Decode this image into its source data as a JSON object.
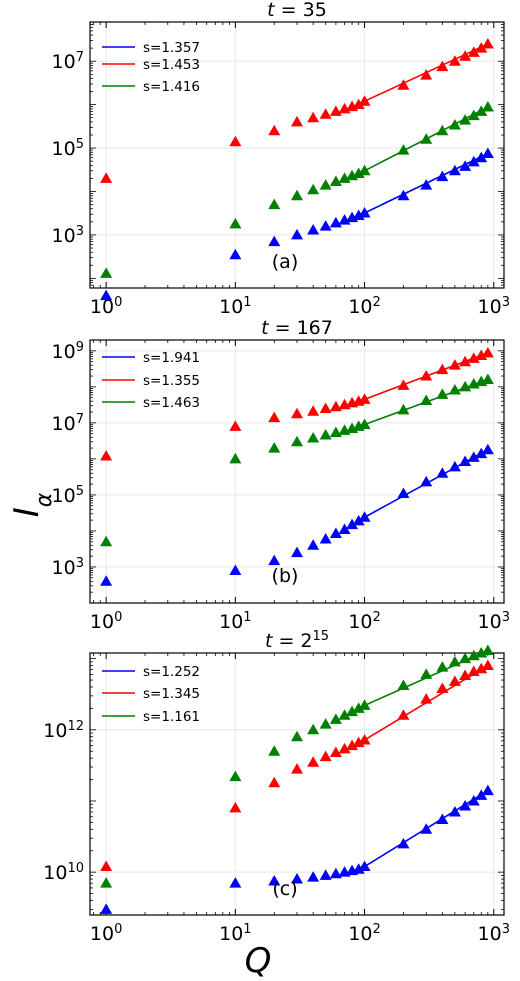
{
  "figure": {
    "ylabel_main": "I",
    "ylabel_sub": "α",
    "xlabel": "Q"
  },
  "colors": {
    "blue": "#0000ff",
    "red": "#ff0000",
    "green": "#008000",
    "grid": "#e8e8e8"
  },
  "chart_data": [
    {
      "type": "scatter",
      "title_prefix": "t = ",
      "title_value": "35",
      "title_exp": "",
      "panel_label": "(a)",
      "xscale": "log",
      "yscale": "log",
      "xlim": [
        0.75,
        1200
      ],
      "ylim": [
        60,
        80000000
      ],
      "xticks": [
        1,
        10,
        100,
        1000
      ],
      "xtick_labels": [
        {
          "base": "10",
          "exp": "0"
        },
        {
          "base": "10",
          "exp": "1"
        },
        {
          "base": "10",
          "exp": "2"
        },
        {
          "base": "10",
          "exp": "3"
        }
      ],
      "yticks": [
        1000,
        100000,
        10000000
      ],
      "ytick_labels": [
        {
          "base": "10",
          "exp": "3"
        },
        {
          "base": "10",
          "exp": "5"
        },
        {
          "base": "10",
          "exp": "7"
        }
      ],
      "grid": true,
      "legend_position": "top-left",
      "legend": [
        {
          "label": "s=1.357",
          "color": "#0000ff"
        },
        {
          "label": "s=1.453",
          "color": "#ff0000"
        },
        {
          "label": "s=1.416",
          "color": "#008000"
        }
      ],
      "series": [
        {
          "color": "#0000ff",
          "marker": "triangle",
          "x": [
            1,
            10,
            20,
            30,
            40,
            50,
            60,
            70,
            80,
            90,
            100,
            200,
            300,
            400,
            500,
            600,
            700,
            800,
            900
          ],
          "y": [
            40,
            350,
            700,
            1000,
            1300,
            1600,
            1900,
            2200,
            2500,
            2800,
            3200,
            8000,
            14000,
            22000,
            30000,
            38000,
            48000,
            60000,
            75000
          ],
          "fit": {
            "x": [
              100,
              900
            ],
            "y": [
              3200,
              75000
            ]
          }
        },
        {
          "color": "#ff0000",
          "marker": "triangle",
          "x": [
            1,
            10,
            20,
            30,
            40,
            50,
            60,
            70,
            80,
            90,
            100,
            200,
            300,
            400,
            500,
            600,
            700,
            800,
            900
          ],
          "y": [
            20000,
            140000,
            250000,
            400000,
            500000,
            600000,
            700000,
            800000,
            900000,
            1000000,
            1200000,
            2800000,
            4800000,
            7500000,
            10000000,
            13000000,
            16000000,
            20000000,
            25000000
          ],
          "fit": {
            "x": [
              100,
              900
            ],
            "y": [
              1200000,
              25000000
            ]
          }
        },
        {
          "color": "#008000",
          "marker": "triangle",
          "x": [
            1,
            10,
            20,
            30,
            40,
            50,
            60,
            70,
            80,
            90,
            100,
            200,
            300,
            400,
            500,
            600,
            700,
            800,
            900
          ],
          "y": [
            130,
            1800,
            5000,
            8000,
            11000,
            14000,
            17000,
            20000,
            23000,
            26000,
            30000,
            90000,
            160000,
            250000,
            340000,
            440000,
            560000,
            700000,
            880000
          ],
          "fit": {
            "x": [
              100,
              900
            ],
            "y": [
              30000,
              880000
            ]
          }
        }
      ]
    },
    {
      "type": "scatter",
      "title_prefix": "t = ",
      "title_value": "167",
      "title_exp": "",
      "panel_label": "(b)",
      "xscale": "log",
      "yscale": "log",
      "xlim": [
        0.75,
        1200
      ],
      "ylim": [
        100,
        2000000000
      ],
      "xticks": [
        1,
        10,
        100,
        1000
      ],
      "xtick_labels": [
        {
          "base": "10",
          "exp": "0"
        },
        {
          "base": "10",
          "exp": "1"
        },
        {
          "base": "10",
          "exp": "2"
        },
        {
          "base": "10",
          "exp": "3"
        }
      ],
      "yticks": [
        1000,
        100000,
        10000000,
        1000000000
      ],
      "ytick_labels": [
        {
          "base": "10",
          "exp": "3"
        },
        {
          "base": "10",
          "exp": "5"
        },
        {
          "base": "10",
          "exp": "7"
        },
        {
          "base": "10",
          "exp": "9"
        }
      ],
      "grid": true,
      "legend_position": "top-left",
      "legend": [
        {
          "label": "s=1.941",
          "color": "#0000ff"
        },
        {
          "label": "s=1.355",
          "color": "#ff0000"
        },
        {
          "label": "s=1.463",
          "color": "#008000"
        }
      ],
      "series": [
        {
          "color": "#0000ff",
          "marker": "triangle",
          "x": [
            1,
            10,
            20,
            30,
            40,
            50,
            60,
            70,
            80,
            90,
            100,
            200,
            300,
            400,
            500,
            600,
            700,
            800,
            900
          ],
          "y": [
            400,
            800,
            1500,
            2500,
            4000,
            6000,
            8500,
            11000,
            15000,
            19000,
            24000,
            110000,
            230000,
            400000,
            600000,
            850000,
            1100000,
            1400000,
            1800000
          ],
          "fit": {
            "x": [
              100,
              900
            ],
            "y": [
              24000,
              1800000
            ]
          }
        },
        {
          "color": "#ff0000",
          "marker": "triangle",
          "x": [
            1,
            10,
            20,
            30,
            40,
            50,
            60,
            70,
            80,
            90,
            100,
            200,
            300,
            400,
            500,
            600,
            700,
            800,
            900
          ],
          "y": [
            1200000,
            8000000,
            14000000,
            18000000,
            21000000,
            25000000,
            28000000,
            32000000,
            36000000,
            40000000,
            45000000,
            110000000,
            200000000,
            300000000,
            400000000,
            500000000,
            620000000,
            740000000,
            880000000
          ],
          "fit": {
            "x": [
              100,
              900
            ],
            "y": [
              45000000,
              880000000
            ]
          }
        },
        {
          "color": "#008000",
          "marker": "triangle",
          "x": [
            1,
            10,
            20,
            30,
            40,
            50,
            60,
            70,
            80,
            90,
            100,
            200,
            300,
            400,
            500,
            600,
            700,
            800,
            900
          ],
          "y": [
            5000,
            1000000,
            2000000,
            3000000,
            3800000,
            4600000,
            5400000,
            6200000,
            7000000,
            8000000,
            9000000,
            23000000,
            42000000,
            62000000,
            82000000,
            100000000,
            120000000,
            140000000,
            160000000
          ],
          "fit": {
            "x": [
              100,
              900
            ],
            "y": [
              9000000,
              160000000
            ]
          }
        }
      ]
    },
    {
      "type": "scatter",
      "title_prefix": "t = ",
      "title_value": "2",
      "title_exp": "15",
      "panel_label": "(c)",
      "xscale": "log",
      "yscale": "log",
      "xlim": [
        0.75,
        1200
      ],
      "ylim": 2500000000,
      "ylim_range": [
        2500000000,
        12000000000000
      ],
      "xticks": [
        1,
        10,
        100,
        1000
      ],
      "xtick_labels": [
        {
          "base": "10",
          "exp": "0"
        },
        {
          "base": "10",
          "exp": "1"
        },
        {
          "base": "10",
          "exp": "2"
        },
        {
          "base": "10",
          "exp": "3"
        }
      ],
      "yticks": [
        10000000000,
        1000000000000
      ],
      "ytick_labels": [
        {
          "base": "10",
          "exp": "10"
        },
        {
          "base": "10",
          "exp": "12"
        }
      ],
      "grid": true,
      "legend_position": "top-left",
      "legend": [
        {
          "label": "s=1.252",
          "color": "#0000ff"
        },
        {
          "label": "s=1.345",
          "color": "#ff0000"
        },
        {
          "label": "s=1.161",
          "color": "#008000"
        }
      ],
      "series": [
        {
          "color": "#0000ff",
          "marker": "triangle",
          "x": [
            1,
            10,
            20,
            30,
            40,
            50,
            60,
            70,
            80,
            90,
            100,
            200,
            300,
            400,
            500,
            600,
            700,
            800,
            900
          ],
          "y": [
            3000000000,
            7000000000,
            7500000000,
            8000000000,
            8500000000,
            9000000000,
            9500000000,
            10000000000,
            10500000000,
            11000000000,
            12000000000,
            25000000000,
            40000000000,
            55000000000,
            70000000000,
            85000000000,
            100000000000,
            120000000000,
            140000000000
          ],
          "fit": {
            "x": [
              100,
              900
            ],
            "y": [
              12000000000,
              140000000000
            ]
          }
        },
        {
          "color": "#ff0000",
          "marker": "triangle",
          "x": [
            1,
            10,
            20,
            30,
            40,
            50,
            60,
            70,
            80,
            90,
            100,
            200,
            300,
            400,
            500,
            600,
            700,
            800,
            900
          ],
          "y": [
            12000000000,
            80000000000,
            180000000000,
            280000000000,
            350000000000,
            420000000000,
            480000000000,
            540000000000,
            600000000000,
            660000000000,
            720000000000,
            1600000000000,
            2700000000000,
            3800000000000,
            4800000000000,
            5800000000000,
            6600000000000,
            7200000000000,
            8000000000000
          ],
          "fit": {
            "x": [
              100,
              900
            ],
            "y": [
              720000000000,
              8000000000000
            ]
          }
        },
        {
          "color": "#008000",
          "marker": "triangle",
          "x": [
            1,
            10,
            20,
            30,
            40,
            50,
            60,
            70,
            80,
            90,
            100,
            200,
            300,
            400,
            500,
            600,
            700,
            800,
            900
          ],
          "y": [
            7000000000,
            220000000000,
            500000000000,
            800000000000,
            1000000000000,
            1200000000000,
            1400000000000,
            1600000000000,
            1800000000000,
            2000000000000,
            2200000000000,
            4200000000000,
            6000000000000,
            7600000000000,
            9000000000000,
            10000000000000,
            11000000000000,
            12000000000000,
            13000000000000
          ],
          "fit": {
            "x": [
              100,
              900
            ],
            "y": [
              2200000000000,
              13000000000000
            ]
          }
        }
      ]
    }
  ]
}
